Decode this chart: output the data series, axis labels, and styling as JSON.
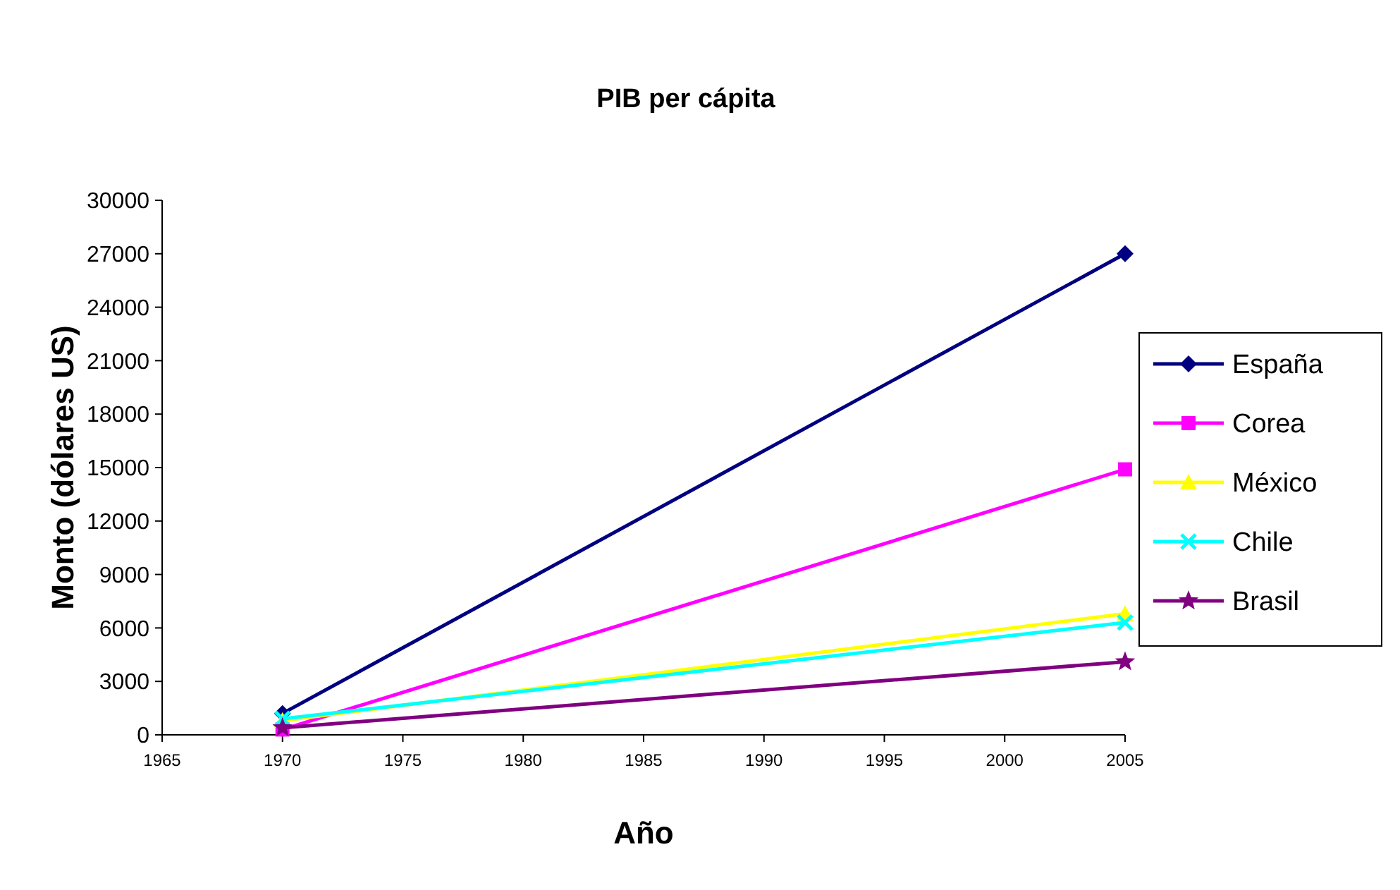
{
  "chart_data": {
    "type": "line",
    "title": "PIB per cápita",
    "xlabel": "Año",
    "ylabel": "Monto (dólares US)",
    "x": [
      1970,
      2005
    ],
    "xlim": [
      1965,
      2005
    ],
    "xticks": [
      1965,
      1970,
      1975,
      1980,
      1985,
      1990,
      1995,
      2000,
      2005
    ],
    "ylim": [
      0,
      30000
    ],
    "yticks": [
      0,
      3000,
      6000,
      9000,
      12000,
      15000,
      18000,
      21000,
      24000,
      27000,
      30000
    ],
    "legend": "right",
    "series": [
      {
        "name": "España",
        "color": "#000080",
        "marker": "diamond",
        "values": [
          1200,
          27000
        ]
      },
      {
        "name": "Corea",
        "color": "#ff00ff",
        "marker": "square",
        "values": [
          300,
          14900
        ]
      },
      {
        "name": "México",
        "color": "#ffff00",
        "marker": "triangle",
        "values": [
          800,
          6800
        ]
      },
      {
        "name": "Chile",
        "color": "#00ffff",
        "marker": "cross",
        "values": [
          900,
          6300
        ]
      },
      {
        "name": "Brasil",
        "color": "#800080",
        "marker": "star",
        "values": [
          400,
          4100
        ]
      }
    ]
  }
}
